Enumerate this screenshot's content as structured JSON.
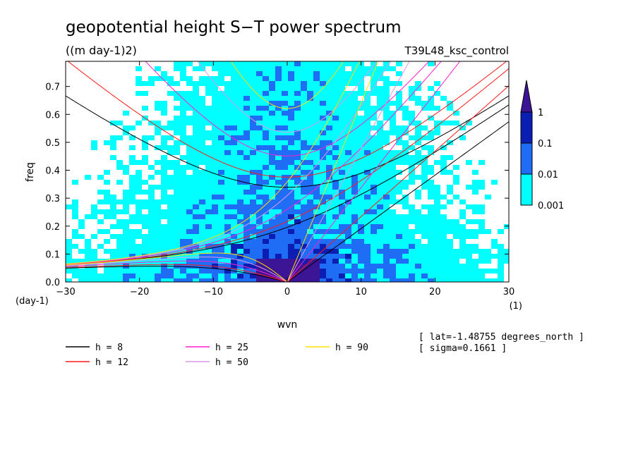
{
  "chart_data": {
    "type": "heatmap",
    "title": "geopotential height S−T power spectrum",
    "subtitle": "((m day-1)2)",
    "run_label": "T39L48_ksc_control",
    "xlabel": "wvn",
    "ylabel": "freq",
    "x_unit": "(1)",
    "y_unit": "(day-1)",
    "xlim": [
      -30,
      30
    ],
    "ylim": [
      0,
      0.79
    ],
    "xticks": [
      -30,
      -20,
      -10,
      0,
      10,
      20,
      30
    ],
    "xtick_labels": [
      "−30",
      "−20",
      "−10",
      "0",
      "10",
      "20",
      "30"
    ],
    "yticks": [
      0,
      0.1,
      0.2,
      0.3,
      0.4,
      0.5,
      0.6,
      0.7
    ],
    "ytick_labels": [
      "0.0",
      "0.1",
      "0.2",
      "0.3",
      "0.4",
      "0.5",
      "0.6",
      "0.7"
    ],
    "colorbar": {
      "levels": [
        0.001,
        0.01,
        0.1,
        1
      ],
      "labels": [
        "0.001",
        "0.01",
        "0.1",
        "1"
      ],
      "colors": [
        "#ffffff",
        "#00ffff",
        "#1f6cf5",
        "#0a1eb4",
        "#3b1596"
      ]
    },
    "series": [
      {
        "name": "h =  8",
        "h": 8,
        "color": "#000000"
      },
      {
        "name": "h = 12",
        "h": 12,
        "color": "#ff1a1a"
      },
      {
        "name": "h = 25",
        "h": 25,
        "color": "#ff1fcf"
      },
      {
        "name": "h = 50",
        "h": 50,
        "color": "#d999ee"
      },
      {
        "name": "h = 90",
        "h": 90,
        "color": "#ffe000"
      }
    ],
    "annotations": [
      "[ lat=-1.48755 degrees_north ]",
      "[ sigma=0.1661 ]"
    ]
  }
}
